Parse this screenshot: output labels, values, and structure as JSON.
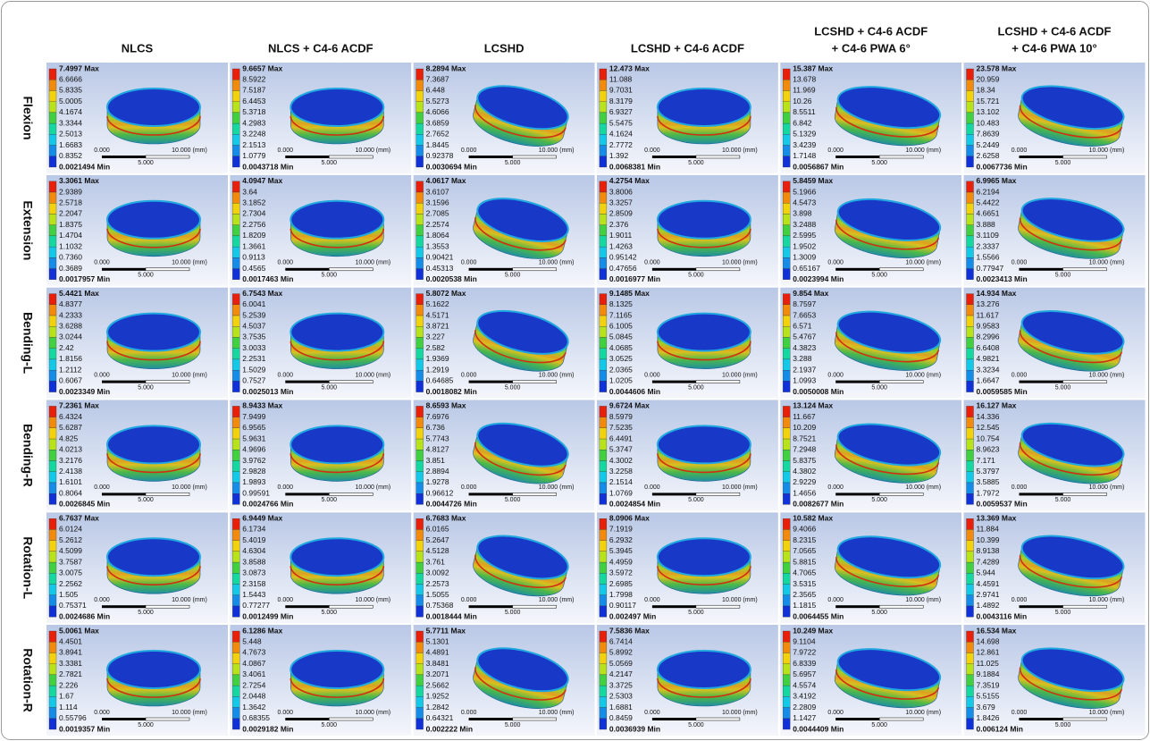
{
  "columns": [
    [
      "NLCS"
    ],
    [
      "NLCS + C4-6 ACDF"
    ],
    [
      "LCSHD"
    ],
    [
      "LCSHD + C4-6 ACDF"
    ],
    [
      "LCSHD + C4-6 ACDF",
      "+ C4-6 PWA 6°"
    ],
    [
      "LCSHD + C4-6 ACDF",
      "+ C4-6 PWA 10°"
    ]
  ],
  "rows": [
    "Flexion",
    "Extension",
    "Bending-L",
    "Bending-R",
    "Rotation-L",
    "Rotation-R"
  ],
  "scale": {
    "start": "0.000",
    "end": "10.000 (mm)",
    "mid": "5.000"
  },
  "cells": [
    [
      [
        "7.4997 Max",
        "6.6666",
        "5.8335",
        "5.0005",
        "4.1674",
        "3.3344",
        "2.5013",
        "1.6683",
        "0.8352",
        "0.0021494 Min"
      ],
      [
        "9.6657 Max",
        "8.5922",
        "7.5187",
        "6.4453",
        "5.3718",
        "4.2983",
        "3.2248",
        "2.1513",
        "1.0779",
        "0.0043718 Min"
      ],
      [
        "8.2894 Max",
        "7.3687",
        "6.448",
        "5.5273",
        "4.6066",
        "3.6859",
        "2.7652",
        "1.8445",
        "0.92378",
        "0.0030694 Min"
      ],
      [
        "12.473 Max",
        "11.088",
        "9.7031",
        "8.3179",
        "6.9327",
        "5.5475",
        "4.1624",
        "2.7772",
        "1.392",
        "0.0068381 Min"
      ],
      [
        "15.387 Max",
        "13.678",
        "11.969",
        "10.26",
        "8.5511",
        "6.842",
        "5.1329",
        "3.4239",
        "1.7148",
        "0.0056867 Min"
      ],
      [
        "23.578 Max",
        "20.959",
        "18.34",
        "15.721",
        "13.102",
        "10.483",
        "7.8639",
        "5.2449",
        "2.6258",
        "0.0067736 Min"
      ]
    ],
    [
      [
        "3.3061 Max",
        "2.9389",
        "2.5718",
        "2.2047",
        "1.8375",
        "1.4704",
        "1.1032",
        "0.7360",
        "0.3689",
        "0.0017957 Min"
      ],
      [
        "4.0947 Max",
        "3.64",
        "3.1852",
        "2.7304",
        "2.2756",
        "1.8209",
        "1.3661",
        "0.9113",
        "0.4565",
        "0.0017463 Min"
      ],
      [
        "4.0617 Max",
        "3.6107",
        "3.1596",
        "2.7085",
        "2.2574",
        "1.8064",
        "1.3553",
        "0.90421",
        "0.45313",
        "0.0020538 Min"
      ],
      [
        "4.2754 Max",
        "3.8006",
        "3.3257",
        "2.8509",
        "2.376",
        "1.9011",
        "1.4263",
        "0.95142",
        "0.47656",
        "0.0016977 Min"
      ],
      [
        "5.8459 Max",
        "5.1966",
        "4.5473",
        "3.898",
        "3.2488",
        "2.5995",
        "1.9502",
        "1.3009",
        "0.65167",
        "0.0023994 Min"
      ],
      [
        "6.9965 Max",
        "6.2194",
        "5.4422",
        "4.6651",
        "3.888",
        "3.1109",
        "2.3337",
        "1.5566",
        "0.77947",
        "0.0023413 Min"
      ]
    ],
    [
      [
        "5.4421 Max",
        "4.8377",
        "4.2333",
        "3.6288",
        "3.0244",
        "2.42",
        "1.8156",
        "1.2112",
        "0.6067",
        "0.0023349 Min"
      ],
      [
        "6.7543 Max",
        "6.0041",
        "5.2539",
        "4.5037",
        "3.7535",
        "3.0033",
        "2.2531",
        "1.5029",
        "0.7527",
        "0.0025013 Min"
      ],
      [
        "5.8072 Max",
        "5.1622",
        "4.5171",
        "3.8721",
        "3.227",
        "2.582",
        "1.9369",
        "1.2919",
        "0.64685",
        "0.0018082 Min"
      ],
      [
        "9.1485 Max",
        "8.1325",
        "7.1165",
        "6.1005",
        "5.0845",
        "4.0685",
        "3.0525",
        "2.0365",
        "1.0205",
        "0.0044606 Min"
      ],
      [
        "9.854 Max",
        "8.7597",
        "7.6653",
        "6.571",
        "5.4767",
        "4.3823",
        "3.288",
        "2.1937",
        "1.0993",
        "0.0050008 Min"
      ],
      [
        "14.934 Max",
        "13.276",
        "11.617",
        "9.9583",
        "8.2996",
        "6.6408",
        "4.9821",
        "3.3234",
        "1.6647",
        "0.0059585 Min"
      ]
    ],
    [
      [
        "7.2361 Max",
        "6.4324",
        "5.6287",
        "4.825",
        "4.0213",
        "3.2176",
        "2.4138",
        "1.6101",
        "0.8064",
        "0.0026845 Min"
      ],
      [
        "8.9433 Max",
        "7.9499",
        "6.9565",
        "5.9631",
        "4.9696",
        "3.9762",
        "2.9828",
        "1.9893",
        "0.99591",
        "0.0024766 Min"
      ],
      [
        "8.6593 Max",
        "7.6976",
        "6.736",
        "5.7743",
        "4.8127",
        "3.851",
        "2.8894",
        "1.9278",
        "0.96612",
        "0.0044726 Min"
      ],
      [
        "9.6724 Max",
        "8.5979",
        "7.5235",
        "6.4491",
        "5.3747",
        "4.3002",
        "3.2258",
        "2.1514",
        "1.0769",
        "0.0024854 Min"
      ],
      [
        "13.124 Max",
        "11.667",
        "10.209",
        "8.7521",
        "7.2948",
        "5.8375",
        "4.3802",
        "2.9229",
        "1.4656",
        "0.0082677 Min"
      ],
      [
        "16.127 Max",
        "14.336",
        "12.545",
        "10.754",
        "8.9623",
        "7.171",
        "5.3797",
        "3.5885",
        "1.7972",
        "0.0059537 Min"
      ]
    ],
    [
      [
        "6.7637 Max",
        "6.0124",
        "5.2612",
        "4.5099",
        "3.7587",
        "3.0075",
        "2.2562",
        "1.505",
        "0.75371",
        "0.0024686 Min"
      ],
      [
        "6.9449 Max",
        "6.1734",
        "5.4019",
        "4.6304",
        "3.8588",
        "3.0873",
        "2.3158",
        "1.5443",
        "0.77277",
        "0.0012499 Min"
      ],
      [
        "6.7683 Max",
        "6.0165",
        "5.2647",
        "4.5128",
        "3.761",
        "3.0092",
        "2.2573",
        "1.5055",
        "0.75368",
        "0.0018444 Min"
      ],
      [
        "8.0906 Max",
        "7.1919",
        "6.2932",
        "5.3945",
        "4.4959",
        "3.5972",
        "2.6985",
        "1.7998",
        "0.90117",
        "0.002497 Min"
      ],
      [
        "10.582 Max",
        "9.4066",
        "8.2315",
        "7.0565",
        "5.8815",
        "4.7065",
        "3.5315",
        "2.3565",
        "1.1815",
        "0.0064455 Min"
      ],
      [
        "13.369 Max",
        "11.884",
        "10.399",
        "8.9138",
        "7.4289",
        "5.944",
        "4.4591",
        "2.9741",
        "1.4892",
        "0.0043116 Min"
      ]
    ],
    [
      [
        "5.0061 Max",
        "4.4501",
        "3.8941",
        "3.3381",
        "2.7821",
        "2.226",
        "1.67",
        "1.114",
        "0.55796",
        "0.0019357 Min"
      ],
      [
        "6.1286 Max",
        "5.448",
        "4.7673",
        "4.0867",
        "3.4061",
        "2.7254",
        "2.0448",
        "1.3642",
        "0.68355",
        "0.0029182 Min"
      ],
      [
        "5.7711 Max",
        "5.1301",
        "4.4891",
        "3.8481",
        "3.2071",
        "2.5662",
        "1.9252",
        "1.2842",
        "0.64321",
        "0.002222 Min"
      ],
      [
        "7.5836 Max",
        "6.7414",
        "5.8992",
        "5.0569",
        "4.2147",
        "3.3725",
        "2.5303",
        "1.6881",
        "0.8459",
        "0.0036939 Min"
      ],
      [
        "10.249 Max",
        "9.1104",
        "7.9722",
        "6.8339",
        "5.6957",
        "4.5574",
        "3.4192",
        "2.2809",
        "1.1427",
        "0.0044409 Min"
      ],
      [
        "16.534 Max",
        "14.698",
        "12.861",
        "11.025",
        "9.1884",
        "7.3519",
        "5.5155",
        "3.679",
        "1.8426",
        "0.006124 Min"
      ]
    ]
  ]
}
